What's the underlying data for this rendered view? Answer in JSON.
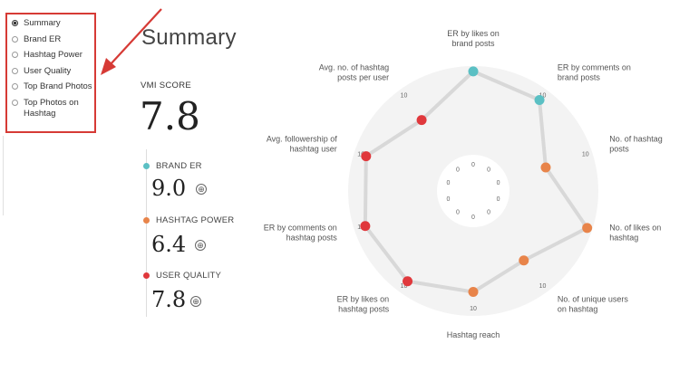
{
  "sidebar": {
    "items": [
      {
        "label": "Summary",
        "active": true
      },
      {
        "label": "Brand ER",
        "active": false
      },
      {
        "label": "Hashtag Power",
        "active": false
      },
      {
        "label": "User Quality",
        "active": false
      },
      {
        "label": "Top Brand Photos",
        "active": false
      },
      {
        "label": "Top Photos on",
        "label2": "Hashtag",
        "active": false
      }
    ]
  },
  "title": "Summary",
  "vmi": {
    "label": "VMI SCORE",
    "value": "7.8"
  },
  "metrics": [
    {
      "label": "BRAND ER",
      "value": "9.0",
      "color": "#5bc0c4"
    },
    {
      "label": "HASHTAG POWER",
      "value": "6.4",
      "color": "#e8844a"
    },
    {
      "label": "USER QUALITY",
      "value": "7.8",
      "color": "#e0383c"
    }
  ],
  "plus_symbol": "⊕",
  "colors": {
    "annotation_red": "#d63a35",
    "brand": "#5bc0c4",
    "hashtag": "#e8844a",
    "user": "#e0383c",
    "radar_fill": "#f3f3f3",
    "line": "#d8d8d8"
  },
  "chart_data": {
    "type": "radar",
    "range": [
      0,
      10
    ],
    "center_tick_label": "0",
    "max_tick_label": "10",
    "axes": [
      {
        "name": "ER by likes on",
        "name2": "brand posts",
        "value": 9.4,
        "group": "brand"
      },
      {
        "name": "ER by comments on",
        "name2": "brand posts",
        "value": 8.6,
        "group": "brand"
      },
      {
        "name": "No. of hashtag",
        "name2": "posts",
        "value": 4.5,
        "group": "hashtag"
      },
      {
        "name": "No. of likes on",
        "name2": "hashtag",
        "value": 9.4,
        "group": "hashtag"
      },
      {
        "name": "No. of unique users",
        "name2": "on hashtag",
        "value": 5.6,
        "group": "hashtag"
      },
      {
        "name": "Hashtag reach",
        "name2": "",
        "value": 7.3,
        "group": "hashtag"
      },
      {
        "name": "ER by likes on",
        "name2": "hashtag posts",
        "value": 8.5,
        "group": "user"
      },
      {
        "name": "ER by comments on",
        "name2": "hashtag posts",
        "value": 8.7,
        "group": "user"
      },
      {
        "name": "Avg. followership of",
        "name2": "hashtag user",
        "value": 8.6,
        "group": "user"
      },
      {
        "name": "Avg. no. of hashtag",
        "name2": "posts per user",
        "value": 5.8,
        "group": "user"
      }
    ]
  }
}
